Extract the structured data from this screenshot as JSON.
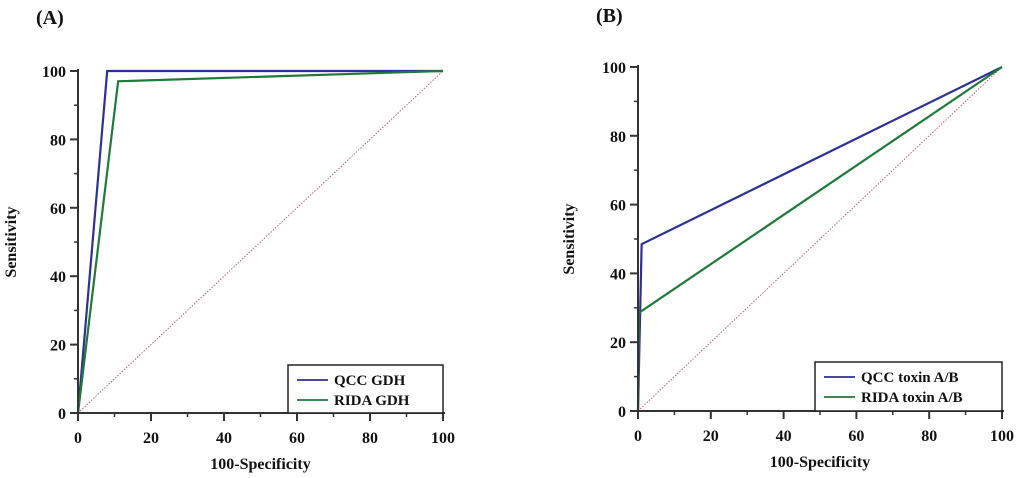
{
  "chart_data": [
    {
      "type": "line",
      "panel_label": "(A)",
      "xlabel": "100-Specificity",
      "ylabel": "Sensitivity",
      "xlim": [
        0,
        100
      ],
      "ylim": [
        0,
        100
      ],
      "xticks": [
        0,
        20,
        40,
        60,
        80,
        100
      ],
      "yticks": [
        0,
        20,
        40,
        60,
        80,
        100
      ],
      "grid": false,
      "legend_position": "bottom-right",
      "reference_line": {
        "name": "chance diagonal",
        "x": [
          0,
          100
        ],
        "y": [
          0,
          100
        ],
        "style": "dotted",
        "color": "#c0607a"
      },
      "series": [
        {
          "name": "QCC GDH",
          "color": "#2e3192",
          "x": [
            0,
            8,
            100
          ],
          "y": [
            0,
            100,
            100
          ]
        },
        {
          "name": "RIDA GDH",
          "color": "#1f7a3a",
          "x": [
            0,
            11,
            100
          ],
          "y": [
            0,
            97,
            100
          ]
        }
      ]
    },
    {
      "type": "line",
      "panel_label": "(B)",
      "xlabel": "100-Specificity",
      "ylabel": "Sensitivity",
      "xlim": [
        0,
        100
      ],
      "ylim": [
        0,
        100
      ],
      "xticks": [
        0,
        20,
        40,
        60,
        80,
        100
      ],
      "yticks": [
        0,
        20,
        40,
        60,
        80,
        100
      ],
      "grid": false,
      "legend_position": "bottom-right",
      "reference_line": {
        "name": "chance diagonal",
        "x": [
          0,
          100
        ],
        "y": [
          0,
          100
        ],
        "style": "dotted",
        "color": "#c0607a"
      },
      "series": [
        {
          "name": "QCC toxin A/B",
          "color": "#2e3192",
          "x": [
            0,
            1,
            100
          ],
          "y": [
            0,
            48.5,
            100
          ]
        },
        {
          "name": "RIDA toxin A/B",
          "color": "#1f7a3a",
          "x": [
            0,
            0.2,
            100
          ],
          "y": [
            0,
            28.5,
            100
          ]
        }
      ]
    }
  ]
}
